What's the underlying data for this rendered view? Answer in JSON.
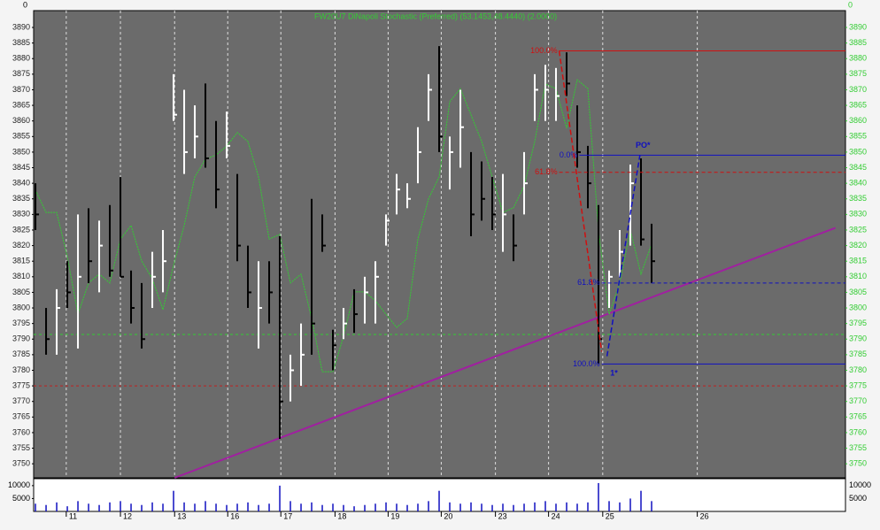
{
  "chart_data": {
    "type": "ohlc",
    "title": "FW20U7 DiNapoli Stochastic (Preferred) (53.1453,48.4440) (2.0000)",
    "corner_labels": [
      "0",
      "0"
    ],
    "xlim": [
      -0.17,
      76.25
    ],
    "date_ticks": [
      {
        "value": 2.9,
        "label": "11"
      },
      {
        "value": 8,
        "label": "12"
      },
      {
        "value": 13.1,
        "label": "13"
      },
      {
        "value": 18.1,
        "label": "16"
      },
      {
        "value": 23.1,
        "label": "17"
      },
      {
        "value": 28.2,
        "label": "18"
      },
      {
        "value": 33.2,
        "label": "19"
      },
      {
        "value": 38.2,
        "label": "20"
      },
      {
        "value": 43.3,
        "label": "23"
      },
      {
        "value": 48.3,
        "label": "24"
      },
      {
        "value": 53.4,
        "label": "25"
      },
      {
        "value": 62.3,
        "label": "26"
      }
    ],
    "ylim": [
      3745.5,
      3895.4
    ],
    "yticks": [
      3750,
      3755,
      3760,
      3765,
      3770,
      3775,
      3780,
      3785,
      3790,
      3795,
      3800,
      3805,
      3810,
      3815,
      3820,
      3825,
      3830,
      3835,
      3840,
      3845,
      3850,
      3855,
      3860,
      3865,
      3870,
      3875,
      3880,
      3885,
      3890
    ],
    "grid": true,
    "high": [
      3840,
      3800,
      3806,
      3815,
      3830,
      3832,
      3828,
      3833,
      3842,
      3812,
      3808,
      3818,
      3825,
      3875,
      3870,
      3865,
      3872,
      3860,
      3863,
      3843,
      3820,
      3815,
      3815,
      3823,
      3785,
      3795,
      3835,
      3830,
      3793,
      3800,
      3806,
      3810,
      3815,
      3830,
      3843,
      3840,
      3858,
      3875,
      3884,
      3855,
      3870,
      3850,
      3847,
      3842,
      3843,
      3830,
      3850,
      3875,
      3878,
      3877,
      3882,
      3865,
      3852,
      3833,
      3812,
      3825,
      3846,
      3848,
      3827
    ],
    "low": [
      3825,
      3785,
      3785,
      3800,
      3787,
      3808,
      3805,
      3810,
      3810,
      3795,
      3787,
      3800,
      3805,
      3860,
      3843,
      3848,
      3845,
      3832,
      3848,
      3815,
      3800,
      3787,
      3795,
      3758,
      3770,
      3775,
      3785,
      3818,
      3780,
      3790,
      3792,
      3795,
      3795,
      3820,
      3830,
      3832,
      3840,
      3860,
      3850,
      3838,
      3845,
      3823,
      3828,
      3825,
      3818,
      3815,
      3830,
      3860,
      3860,
      3860,
      3868,
      3845,
      3832,
      3782,
      3800,
      3810,
      3820,
      3820,
      3808
    ],
    "close": [
      3830,
      3790,
      3800,
      3805,
      3810,
      3815,
      3820,
      3812,
      3810,
      3800,
      3790,
      3810,
      3815,
      3862,
      3850,
      3855,
      3848,
      3838,
      3852,
      3820,
      3805,
      3800,
      3805,
      3770,
      3780,
      3785,
      3795,
      3820,
      3788,
      3795,
      3798,
      3805,
      3810,
      3828,
      3838,
      3835,
      3850,
      3870,
      3855,
      3850,
      3858,
      3830,
      3835,
      3830,
      3830,
      3820,
      3840,
      3870,
      3870,
      3868,
      3872,
      3850,
      3840,
      3790,
      3810,
      3818,
      3840,
      3822,
      3815
    ],
    "bar_colors": [
      "#000",
      "#000",
      "#fff",
      "#000",
      "#fff",
      "#000",
      "#fff",
      "#000",
      "#000",
      "#000",
      "#000",
      "#fff",
      "#fff",
      "#fff",
      "#fff",
      "#fff",
      "#000",
      "#000",
      "#fff",
      "#000",
      "#000",
      "#fff",
      "#000",
      "#000",
      "#fff",
      "#fff",
      "#000",
      "#000",
      "#000",
      "#fff",
      "#000",
      "#fff",
      "#fff",
      "#fff",
      "#fff",
      "#fff",
      "#fff",
      "#fff",
      "#000",
      "#fff",
      "#fff",
      "#000",
      "#000",
      "#000",
      "#fff",
      "#000",
      "#fff",
      "#fff",
      "#fff",
      "#fff",
      "#000",
      "#000",
      "#000",
      "#000",
      "#fff",
      "#fff",
      "#fff",
      "#000",
      "#000"
    ],
    "stochastic": {
      "color": "#3c3",
      "lim": [
        0,
        100
      ],
      "values": [
        61.6,
        56.8,
        56.8,
        47.3,
        35.0,
        41.7,
        43.6,
        41.7,
        51.1,
        54.0,
        46.4,
        42.6,
        36.0,
        45.5,
        54.0,
        64.4,
        68.2,
        69.1,
        71.0,
        73.9,
        72.0,
        64.4,
        51.1,
        52.1,
        41.7,
        43.6,
        34.1,
        22.7,
        22.7,
        30.3,
        39.8,
        39.8,
        37.9,
        35.0,
        32.2,
        34.1,
        51.1,
        59.7,
        64.4,
        80.5,
        83.3,
        77.7,
        72.0,
        64.4,
        56.8,
        57.8,
        62.5,
        72.0,
        84.3,
        83.3,
        74.8,
        85.2,
        83.3,
        53.0,
        35.0,
        41.7,
        53.0,
        43.6,
        50.0
      ]
    },
    "volume": {
      "lim": [
        0,
        12700
      ],
      "ticks": [
        10000,
        5000
      ],
      "values": [
        3000,
        2500,
        3500,
        2000,
        4000,
        3000,
        2500,
        3500,
        4000,
        3000,
        2500,
        3500,
        3000,
        8000,
        3500,
        3000,
        4000,
        3000,
        2500,
        3000,
        3500,
        2500,
        3000,
        10000,
        4000,
        3000,
        3500,
        2500,
        3000,
        2500,
        2000,
        2500,
        3000,
        3500,
        3000,
        2500,
        3000,
        4000,
        8000,
        3500,
        3000,
        3500,
        3000,
        2500,
        3000,
        2500,
        3000,
        3500,
        4000,
        3000,
        3500,
        3000,
        3500,
        11000,
        4000,
        3500,
        5000,
        8000,
        4000
      ]
    },
    "levels": [
      {
        "price": 3775,
        "color": "#c02020"
      },
      {
        "price": 3791.5,
        "color": "#3c3"
      }
    ],
    "fib_levels": [
      {
        "price": 3882.5,
        "start": 49.3,
        "label": "100.0%",
        "color": "#d01010",
        "dash": false
      },
      {
        "price": 3843.5,
        "start": 49.3,
        "label": "61.8%",
        "color": "#d01010",
        "dash": true
      },
      {
        "price": 3849,
        "start": 51.2,
        "label": "0.0%",
        "color": "#1010c0",
        "dash": false
      },
      {
        "price": 3808,
        "start": 53.3,
        "label": "61.8%",
        "color": "#1010c0",
        "dash": true
      },
      {
        "price": 3782,
        "start": 53.3,
        "label": "100.0%",
        "color": "#1010c0",
        "dash": false
      }
    ],
    "swings": [
      {
        "x": [
          49.3,
          53.3
        ],
        "y": [
          3882.5,
          3786
        ],
        "color": "#d01010"
      },
      {
        "x": [
          53.8,
          56.9
        ],
        "y": [
          3784.5,
          3849
        ],
        "color": "#1010c0"
      }
    ],
    "trendline": {
      "x": [
        13.1,
        75.3
      ],
      "y": [
        3745.5,
        3825.7
      ],
      "color": "#a020a0"
    },
    "annotations": [
      {
        "text": "PO*",
        "x": 56.5,
        "y": 3852
      },
      {
        "text": "1*",
        "x": 54.1,
        "y": 3779
      }
    ]
  }
}
